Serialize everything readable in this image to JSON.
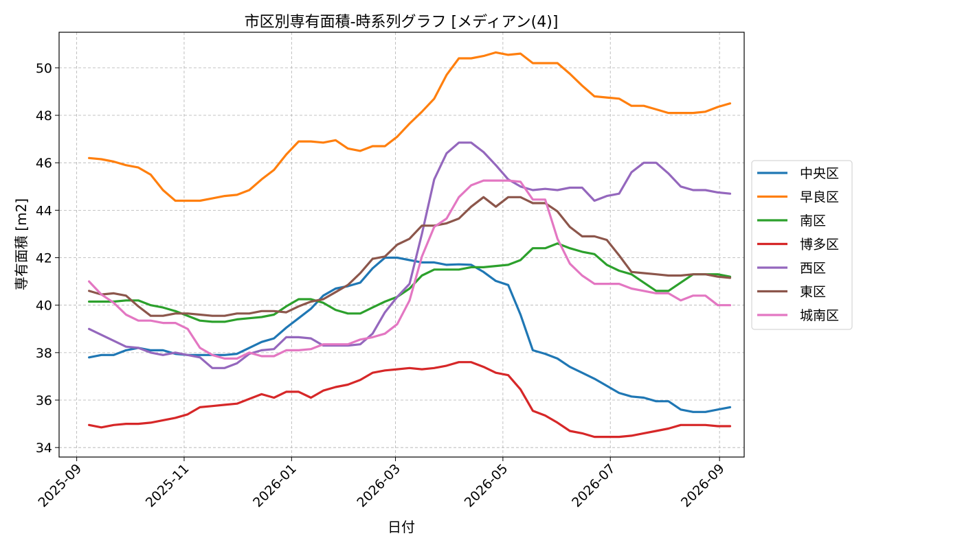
{
  "chart_data": {
    "type": "line",
    "title": "市区別専有面積-時系列グラフ [メディアン(4)]",
    "xlabel": "日付",
    "ylabel": "専有面積 [m2]",
    "ylim": [
      33.6,
      51.5
    ],
    "y_ticks": [
      34,
      36,
      38,
      40,
      42,
      44,
      46,
      48,
      50
    ],
    "x_ticks": [
      "2025-09-01",
      "2025-11-01",
      "2026-01-01",
      "2026-03-01",
      "2026-05-01",
      "2026-07-01",
      "2026-09-01"
    ],
    "x_tick_labels": [
      "2025-09",
      "2025-11",
      "2026-01",
      "2026-03",
      "2026-05",
      "2026-07",
      "2026-09"
    ],
    "xlim": [
      "2025-08-22",
      "2026-09-15"
    ],
    "grid": true,
    "legend_position": "center-right",
    "x": [
      "2025-09-08",
      "2025-09-15",
      "2025-09-22",
      "2025-09-29",
      "2025-10-06",
      "2025-10-13",
      "2025-10-20",
      "2025-10-27",
      "2025-11-03",
      "2025-11-10",
      "2025-11-17",
      "2025-11-24",
      "2025-12-01",
      "2025-12-08",
      "2025-12-15",
      "2025-12-22",
      "2025-12-29",
      "2026-01-05",
      "2026-01-12",
      "2026-01-19",
      "2026-01-26",
      "2026-02-02",
      "2026-02-09",
      "2026-02-16",
      "2026-02-23",
      "2026-03-02",
      "2026-03-09",
      "2026-03-16",
      "2026-03-23",
      "2026-03-30",
      "2026-04-06",
      "2026-04-13",
      "2026-04-20",
      "2026-04-27",
      "2026-05-04",
      "2026-05-11",
      "2026-05-18",
      "2026-05-25",
      "2026-06-01",
      "2026-06-08",
      "2026-06-15",
      "2026-06-22",
      "2026-06-29",
      "2026-07-06",
      "2026-07-13",
      "2026-07-20",
      "2026-07-27",
      "2026-08-03",
      "2026-08-10",
      "2026-08-17",
      "2026-08-24",
      "2026-08-31",
      "2026-09-07"
    ],
    "series": [
      {
        "name": "中央区",
        "color": "#1f77b4",
        "values": [
          37.8,
          37.9,
          37.9,
          38.1,
          38.2,
          38.1,
          38.1,
          37.95,
          37.9,
          37.9,
          37.9,
          37.9,
          37.95,
          38.2,
          38.45,
          38.6,
          39.05,
          39.45,
          39.85,
          40.4,
          40.7,
          40.8,
          40.95,
          41.55,
          42.0,
          42.0,
          41.9,
          41.8,
          41.8,
          41.7,
          41.72,
          41.7,
          41.4,
          41.02,
          40.85,
          39.6,
          38.1,
          37.95,
          37.75,
          37.4,
          37.15,
          36.9,
          36.6,
          36.3,
          36.15,
          36.1,
          35.95,
          35.95,
          35.6,
          35.5,
          35.5,
          35.6,
          35.7
        ]
      },
      {
        "name": "早良区",
        "color": "#ff7f0e",
        "values": [
          46.2,
          46.15,
          46.05,
          45.9,
          45.8,
          45.5,
          44.85,
          44.4,
          44.4,
          44.4,
          44.5,
          44.6,
          44.65,
          44.85,
          45.3,
          45.7,
          46.35,
          46.9,
          46.9,
          46.85,
          46.95,
          46.6,
          46.5,
          46.7,
          46.7,
          47.1,
          47.65,
          48.15,
          48.7,
          49.7,
          50.4,
          50.4,
          50.5,
          50.65,
          50.55,
          50.6,
          50.2,
          50.2,
          50.2,
          49.75,
          49.25,
          48.8,
          48.75,
          48.7,
          48.4,
          48.4,
          48.25,
          48.1,
          48.1,
          48.1,
          48.15,
          48.35,
          48.5
        ]
      },
      {
        "name": "南区",
        "color": "#2ca02c",
        "values": [
          40.15,
          40.15,
          40.15,
          40.2,
          40.2,
          40.0,
          39.9,
          39.75,
          39.55,
          39.35,
          39.3,
          39.3,
          39.4,
          39.45,
          39.5,
          39.6,
          39.95,
          40.25,
          40.25,
          40.1,
          39.8,
          39.65,
          39.65,
          39.9,
          40.15,
          40.35,
          40.7,
          41.25,
          41.5,
          41.5,
          41.5,
          41.6,
          41.6,
          41.65,
          41.7,
          41.9,
          42.4,
          42.4,
          42.6,
          42.4,
          42.25,
          42.15,
          41.7,
          41.45,
          41.3,
          40.95,
          40.6,
          40.6,
          40.95,
          41.3,
          41.3,
          41.3,
          41.2
        ]
      },
      {
        "name": "博多区",
        "color": "#d62728",
        "values": [
          34.95,
          34.85,
          34.95,
          35.0,
          35.0,
          35.05,
          35.15,
          35.25,
          35.4,
          35.7,
          35.75,
          35.8,
          35.85,
          36.05,
          36.25,
          36.1,
          36.35,
          36.35,
          36.1,
          36.4,
          36.55,
          36.65,
          36.85,
          37.15,
          37.25,
          37.3,
          37.35,
          37.3,
          37.35,
          37.45,
          37.6,
          37.6,
          37.4,
          37.15,
          37.05,
          36.45,
          35.55,
          35.35,
          35.05,
          34.7,
          34.6,
          34.45,
          34.45,
          34.45,
          34.5,
          34.6,
          34.7,
          34.8,
          34.95,
          34.95,
          34.95,
          34.9,
          34.9
        ]
      },
      {
        "name": "西区",
        "color": "#9467bd",
        "values": [
          39.0,
          38.75,
          38.5,
          38.25,
          38.2,
          38.0,
          37.9,
          38.0,
          37.9,
          37.8,
          37.35,
          37.35,
          37.55,
          37.95,
          38.1,
          38.15,
          38.65,
          38.65,
          38.6,
          38.3,
          38.3,
          38.3,
          38.35,
          38.8,
          39.7,
          40.35,
          40.9,
          43.0,
          45.3,
          46.4,
          46.85,
          46.85,
          46.45,
          45.9,
          45.3,
          45.0,
          44.85,
          44.9,
          44.85,
          44.95,
          44.95,
          44.4,
          44.6,
          44.7,
          45.6,
          46.0,
          46.0,
          45.55,
          45.0,
          44.85,
          44.85,
          44.75,
          44.7
        ]
      },
      {
        "name": "東区",
        "color": "#8c564b",
        "values": [
          40.6,
          40.45,
          40.5,
          40.4,
          39.95,
          39.55,
          39.55,
          39.65,
          39.65,
          39.6,
          39.55,
          39.55,
          39.65,
          39.65,
          39.75,
          39.75,
          39.7,
          39.95,
          40.15,
          40.25,
          40.55,
          40.85,
          41.35,
          41.95,
          42.05,
          42.55,
          42.8,
          43.35,
          43.35,
          43.45,
          43.65,
          44.15,
          44.55,
          44.15,
          44.55,
          44.55,
          44.3,
          44.3,
          43.95,
          43.3,
          42.9,
          42.9,
          42.75,
          42.1,
          41.4,
          41.35,
          41.3,
          41.25,
          41.25,
          41.3,
          41.3,
          41.2,
          41.15
        ]
      },
      {
        "name": "城南区",
        "color": "#e377c2",
        "values": [
          41.0,
          40.45,
          40.1,
          39.6,
          39.35,
          39.35,
          39.25,
          39.25,
          39.0,
          38.2,
          37.9,
          37.75,
          37.75,
          38.0,
          37.85,
          37.85,
          38.1,
          38.1,
          38.15,
          38.35,
          38.35,
          38.35,
          38.55,
          38.65,
          38.8,
          39.2,
          40.2,
          42.05,
          43.3,
          43.65,
          44.55,
          45.05,
          45.25,
          45.25,
          45.25,
          45.2,
          44.45,
          44.45,
          42.8,
          41.75,
          41.25,
          40.9,
          40.9,
          40.9,
          40.7,
          40.6,
          40.5,
          40.5,
          40.2,
          40.4,
          40.4,
          40.0,
          40.0
        ]
      }
    ]
  }
}
